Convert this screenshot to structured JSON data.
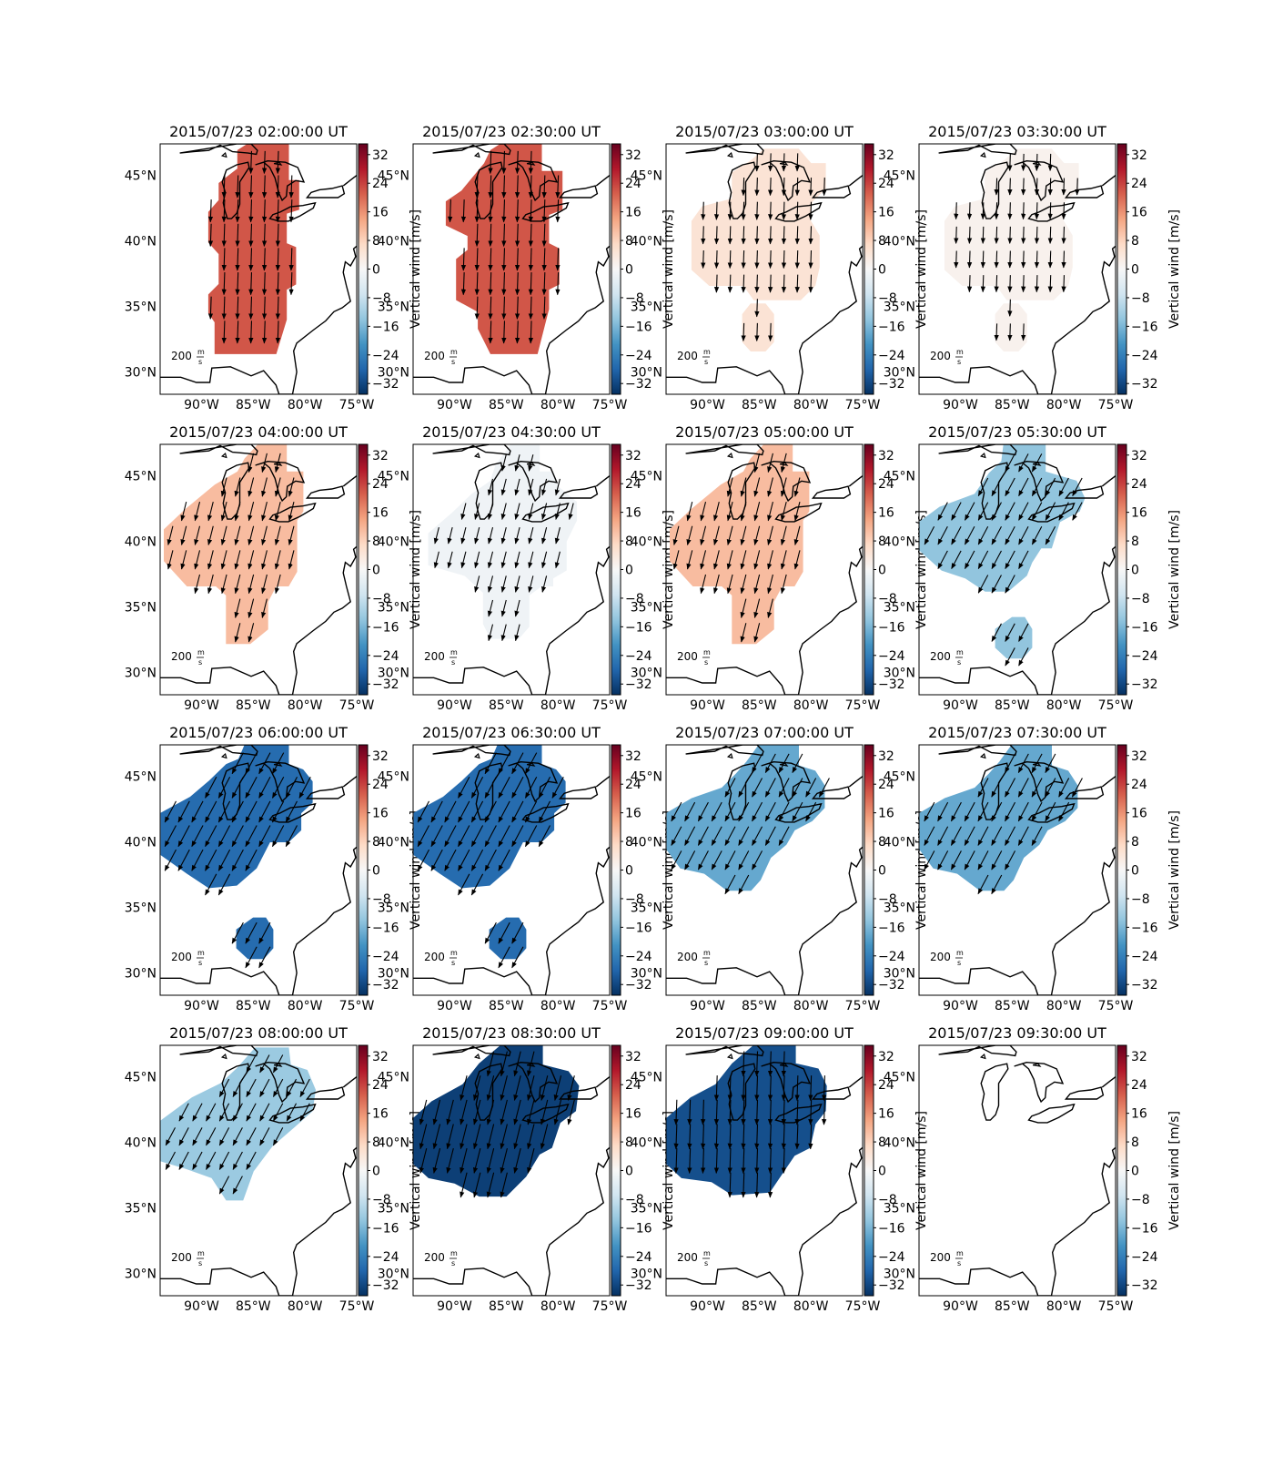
{
  "figure": {
    "rows": 4,
    "cols": 4,
    "colormap": {
      "name": "RdBu_r",
      "stops": [
        "#053061",
        "#2166ac",
        "#4393c3",
        "#92c5de",
        "#d1e5f0",
        "#f7f7f7",
        "#fddbc7",
        "#f4a582",
        "#d6604d",
        "#b2182b",
        "#67001f"
      ],
      "vmin": -35,
      "vmax": 35,
      "ticks": [
        "32",
        "24",
        "16",
        "8",
        "0",
        "−8",
        "−16",
        "−24",
        "−32"
      ],
      "label": "Vertical wind [m/s]"
    },
    "map": {
      "lon_range": [
        -94,
        -75
      ],
      "lat_range": [
        28.3,
        47.4
      ],
      "lat_ticks": [
        "45°N",
        "40°N",
        "35°N",
        "30°N"
      ],
      "lon_ticks": [
        "90°W",
        "85°W",
        "80°W",
        "75°W"
      ],
      "reference_vector": {
        "value": "200",
        "unit_num": "m",
        "unit_den": "s"
      }
    }
  },
  "chart_data": [
    {
      "type": "heatmap",
      "title": "2015/07/23 02:00:00 UT",
      "vertical_wind": 22,
      "arrow_direction": "south"
    },
    {
      "type": "heatmap",
      "title": "2015/07/23 02:30:00 UT",
      "vertical_wind": 22,
      "arrow_direction": "south"
    },
    {
      "type": "heatmap",
      "title": "2015/07/23 03:00:00 UT",
      "vertical_wind": 5,
      "arrow_direction": "south"
    },
    {
      "type": "heatmap",
      "title": "2015/07/23 03:30:00 UT",
      "vertical_wind": 1.5,
      "arrow_direction": "south"
    },
    {
      "type": "heatmap",
      "title": "2015/07/23 04:00:00 UT",
      "vertical_wind": 11,
      "arrow_direction": "south-southwest"
    },
    {
      "type": "heatmap",
      "title": "2015/07/23 04:30:00 UT",
      "vertical_wind": -1.5,
      "arrow_direction": "south-southwest"
    },
    {
      "type": "heatmap",
      "title": "2015/07/23 05:00:00 UT",
      "vertical_wind": 11,
      "arrow_direction": "south-southwest"
    },
    {
      "type": "heatmap",
      "title": "2015/07/23 05:30:00 UT",
      "vertical_wind": -14,
      "arrow_direction": "southwest"
    },
    {
      "type": "heatmap",
      "title": "2015/07/23 06:00:00 UT",
      "vertical_wind": -27,
      "arrow_direction": "southwest"
    },
    {
      "type": "heatmap",
      "title": "2015/07/23 06:30:00 UT",
      "vertical_wind": -27,
      "arrow_direction": "southwest"
    },
    {
      "type": "heatmap",
      "title": "2015/07/23 07:00:00 UT",
      "vertical_wind": -18,
      "arrow_direction": "southwest"
    },
    {
      "type": "heatmap",
      "title": "2015/07/23 07:30:00 UT",
      "vertical_wind": -18,
      "arrow_direction": "southwest"
    },
    {
      "type": "heatmap",
      "title": "2015/07/23 08:00:00 UT",
      "vertical_wind": -13,
      "arrow_direction": "southwest"
    },
    {
      "type": "heatmap",
      "title": "2015/07/23 08:30:00 UT",
      "vertical_wind": -33,
      "arrow_direction": "south-southwest"
    },
    {
      "type": "heatmap",
      "title": "2015/07/23 09:00:00 UT",
      "vertical_wind": -31,
      "arrow_direction": "south"
    },
    {
      "type": "heatmap",
      "title": "2015/07/23 09:30:00 UT",
      "vertical_wind": null,
      "arrow_direction": null
    }
  ]
}
